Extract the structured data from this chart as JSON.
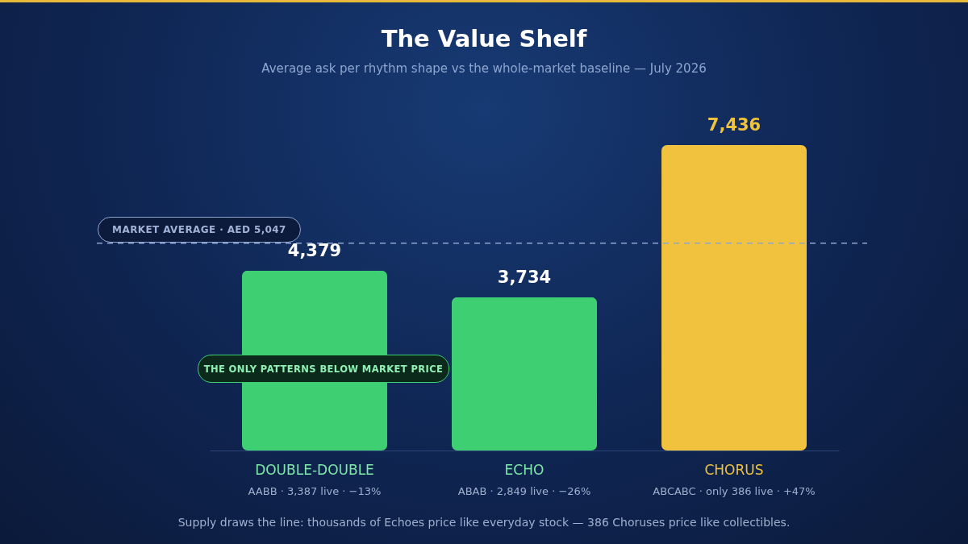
{
  "chart_data": {
    "type": "bar",
    "title": "The Value Shelf",
    "subtitle": "Average ask per rhythm shape vs the whole-market baseline — July 2026",
    "categories": [
      "DOUBLE-DOUBLE",
      "ECHO",
      "CHORUS"
    ],
    "values": [
      4379,
      3734,
      7436
    ],
    "value_labels": [
      "4,379",
      "3,734",
      "7,436"
    ],
    "colors": [
      "#3ecf72",
      "#3ecf72",
      "#f0c23e"
    ],
    "ref_lines": [
      {
        "axis": "y",
        "value": 5047,
        "label": "MARKET AVERAGE · AED 5,047",
        "color": "#8ea6cf",
        "line_style": "dashed"
      }
    ],
    "annotations": [
      "AABB · 3,387 live · −13%",
      "ABAB · 2,849 live · −26%",
      "ABCABC · only 386 live · +47%",
      "THE ONLY PATTERNS BELOW MARKET PRICE",
      "Supply draws the line: thousands of Echoes price like everyday stock — 386 Choruses price like collectibles."
    ]
  }
}
